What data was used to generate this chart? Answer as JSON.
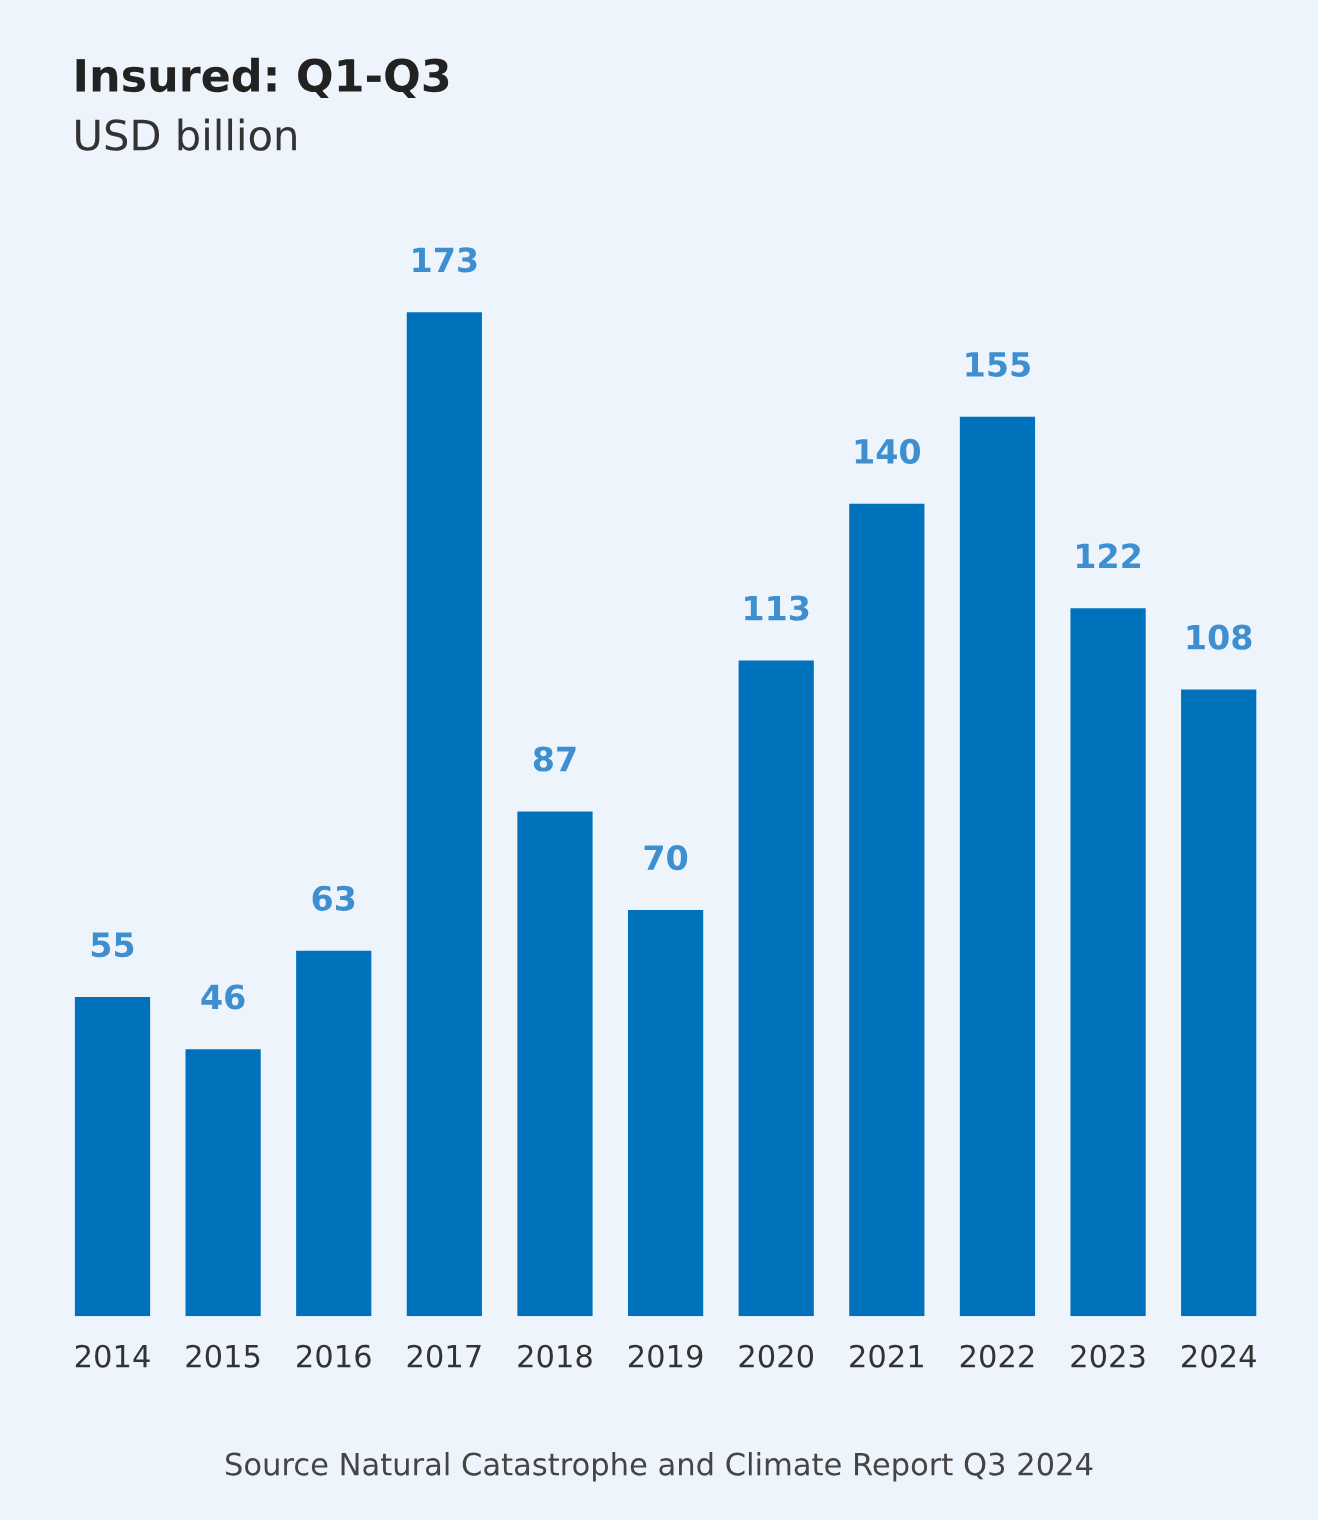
{
  "chart_data": {
    "type": "bar",
    "title": "Insured: Q1-Q3",
    "subtitle": "USD billion",
    "categories": [
      "2014",
      "2015",
      "2016",
      "2017",
      "2018",
      "2019",
      "2020",
      "2021",
      "2022",
      "2023",
      "2024"
    ],
    "values": [
      55,
      46,
      63,
      173,
      87,
      70,
      113,
      140,
      155,
      122,
      108
    ],
    "color": "#0072bc",
    "data_labels": true,
    "grid": false,
    "legend": false,
    "annotations": [
      "Source Natural Catastrophe and Climate Report Q3 2024"
    ]
  }
}
